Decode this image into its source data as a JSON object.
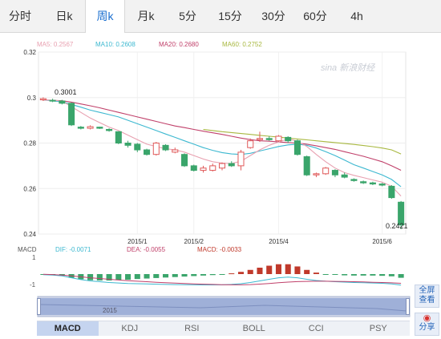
{
  "tabs": [
    {
      "label": "分时"
    },
    {
      "label": "日k"
    },
    {
      "label": "周k",
      "active": true
    },
    {
      "label": "月k"
    },
    {
      "label": "5分"
    },
    {
      "label": "15分"
    },
    {
      "label": "30分"
    },
    {
      "label": "60分"
    },
    {
      "label": "4h"
    }
  ],
  "legend": {
    "ma5": "MA5: 0.2567",
    "ma10": "MA10: 0.2608",
    "ma20": "MA20: 0.2680",
    "ma60": "MA60: 0.2752"
  },
  "watermark": "sina 新浪财经",
  "macd_legend": {
    "name": "MACD",
    "dif": "DIF: -0.0071",
    "dea": "DEA: -0.0055",
    "macd": "MACD: -0.0033"
  },
  "macd_axis": {
    "top": "1",
    "bottom": "-1"
  },
  "navigator_label": "2015",
  "side_buttons": {
    "fullscreen": "全屏\n查看",
    "share": "分享"
  },
  "indicators": [
    "MACD",
    "KDJ",
    "RSI",
    "BOLL",
    "CCI",
    "PSY"
  ],
  "active_indicator": "MACD",
  "colors": {
    "up": "#e05a5a",
    "down": "#3aa56b",
    "ma5": "#e8a0b0",
    "ma10": "#3cb8d0",
    "ma20": "#c0406a",
    "ma60": "#a8b840"
  },
  "chart_data": {
    "type": "candlestick",
    "ylim": [
      0.24,
      0.32
    ],
    "yticks": [
      "0.32",
      "0.3",
      "0.28",
      "0.26",
      "0.24"
    ],
    "x_tick_labels": [
      "2015/1",
      "2015/2",
      "2015/4",
      "2015/6"
    ],
    "annotations": {
      "high": "0.3001",
      "low": "0.2421"
    },
    "candles": [
      {
        "o": 0.299,
        "c": 0.2995,
        "h": 0.3001,
        "l": 0.2985
      },
      {
        "o": 0.2988,
        "c": 0.2985,
        "h": 0.2995,
        "l": 0.298
      },
      {
        "o": 0.2985,
        "c": 0.2975,
        "h": 0.299,
        "l": 0.297
      },
      {
        "o": 0.2975,
        "c": 0.288,
        "h": 0.2978,
        "l": 0.2875
      },
      {
        "o": 0.287,
        "c": 0.2865,
        "h": 0.2875,
        "l": 0.286
      },
      {
        "o": 0.2865,
        "c": 0.2872,
        "h": 0.2878,
        "l": 0.286
      },
      {
        "o": 0.287,
        "c": 0.2865,
        "h": 0.2872,
        "l": 0.2862
      },
      {
        "o": 0.286,
        "c": 0.2855,
        "h": 0.2865,
        "l": 0.285
      },
      {
        "o": 0.285,
        "c": 0.28,
        "h": 0.2852,
        "l": 0.2795
      },
      {
        "o": 0.28,
        "c": 0.279,
        "h": 0.281,
        "l": 0.278
      },
      {
        "o": 0.2795,
        "c": 0.277,
        "h": 0.28,
        "l": 0.276
      },
      {
        "o": 0.277,
        "c": 0.275,
        "h": 0.2775,
        "l": 0.2745
      },
      {
        "o": 0.275,
        "c": 0.28,
        "h": 0.2805,
        "l": 0.2745
      },
      {
        "o": 0.279,
        "c": 0.277,
        "h": 0.2795,
        "l": 0.2765
      },
      {
        "o": 0.276,
        "c": 0.277,
        "h": 0.278,
        "l": 0.2755
      },
      {
        "o": 0.275,
        "c": 0.27,
        "h": 0.2755,
        "l": 0.2695
      },
      {
        "o": 0.27,
        "c": 0.268,
        "h": 0.2705,
        "l": 0.2675
      },
      {
        "o": 0.268,
        "c": 0.269,
        "h": 0.27,
        "l": 0.267
      },
      {
        "o": 0.268,
        "c": 0.27,
        "h": 0.271,
        "l": 0.2675
      },
      {
        "o": 0.269,
        "c": 0.271,
        "h": 0.2715,
        "l": 0.268
      },
      {
        "o": 0.271,
        "c": 0.27,
        "h": 0.272,
        "l": 0.2695
      },
      {
        "o": 0.27,
        "c": 0.276,
        "h": 0.277,
        "l": 0.268
      },
      {
        "o": 0.278,
        "c": 0.281,
        "h": 0.282,
        "l": 0.2775
      },
      {
        "o": 0.2815,
        "c": 0.282,
        "h": 0.285,
        "l": 0.2805
      },
      {
        "o": 0.282,
        "c": 0.2815,
        "h": 0.283,
        "l": 0.281
      },
      {
        "o": 0.281,
        "c": 0.283,
        "h": 0.2835,
        "l": 0.2805
      },
      {
        "o": 0.2825,
        "c": 0.281,
        "h": 0.283,
        "l": 0.28
      },
      {
        "o": 0.281,
        "c": 0.275,
        "h": 0.2815,
        "l": 0.2745
      },
      {
        "o": 0.274,
        "c": 0.266,
        "h": 0.2745,
        "l": 0.2655
      },
      {
        "o": 0.266,
        "c": 0.2665,
        "h": 0.267,
        "l": 0.265
      },
      {
        "o": 0.2665,
        "c": 0.269,
        "h": 0.2695,
        "l": 0.266
      },
      {
        "o": 0.268,
        "c": 0.266,
        "h": 0.2685,
        "l": 0.265
      },
      {
        "o": 0.266,
        "c": 0.265,
        "h": 0.267,
        "l": 0.2645
      },
      {
        "o": 0.264,
        "c": 0.2635,
        "h": 0.2645,
        "l": 0.263
      },
      {
        "o": 0.263,
        "c": 0.2625,
        "h": 0.2635,
        "l": 0.262
      },
      {
        "o": 0.2625,
        "c": 0.262,
        "h": 0.263,
        "l": 0.2615
      },
      {
        "o": 0.262,
        "c": 0.2615,
        "h": 0.2625,
        "l": 0.261
      },
      {
        "o": 0.261,
        "c": 0.256,
        "h": 0.2615,
        "l": 0.2555
      },
      {
        "o": 0.254,
        "c": 0.244,
        "h": 0.2545,
        "l": 0.2421
      }
    ],
    "ma5": [
      0.299,
      0.2988,
      0.2985,
      0.296,
      0.2935,
      0.291,
      0.289,
      0.287,
      0.2855,
      0.2835,
      0.2815,
      0.2795,
      0.2785,
      0.2775,
      0.277,
      0.276,
      0.2745,
      0.273,
      0.2718,
      0.2712,
      0.271,
      0.272,
      0.2745,
      0.277,
      0.279,
      0.2805,
      0.2818,
      0.2808,
      0.2785,
      0.275,
      0.2718,
      0.269,
      0.267,
      0.2658,
      0.2648,
      0.2638,
      0.2628,
      0.261,
      0.2567
    ],
    "ma10": [
      0.299,
      0.2985,
      0.2982,
      0.297,
      0.2958,
      0.2945,
      0.2935,
      0.2925,
      0.2915,
      0.29,
      0.2885,
      0.287,
      0.2855,
      0.284,
      0.2825,
      0.281,
      0.2795,
      0.278,
      0.2768,
      0.2758,
      0.2752,
      0.275,
      0.2755,
      0.2765,
      0.2775,
      0.2785,
      0.2792,
      0.2795,
      0.279,
      0.2778,
      0.2762,
      0.2745,
      0.2725,
      0.2705,
      0.269,
      0.2675,
      0.266,
      0.264,
      0.2608
    ],
    "ma20": [
      0.299,
      0.2988,
      0.2986,
      0.298,
      0.2972,
      0.2964,
      0.2955,
      0.2945,
      0.2935,
      0.2925,
      0.2915,
      0.2905,
      0.2895,
      0.2885,
      0.2875,
      0.2868,
      0.286,
      0.2852,
      0.2845,
      0.2838,
      0.283,
      0.2822,
      0.2815,
      0.281,
      0.2808,
      0.2805,
      0.2802,
      0.28,
      0.2795,
      0.2788,
      0.278,
      0.2772,
      0.2762,
      0.2752,
      0.2742,
      0.273,
      0.2718,
      0.27,
      0.268
    ],
    "ma60": [
      null,
      null,
      null,
      null,
      null,
      null,
      null,
      null,
      null,
      null,
      null,
      null,
      null,
      null,
      null,
      null,
      null,
      0.286,
      0.2855,
      0.285,
      0.2846,
      0.2842,
      0.2838,
      0.2834,
      0.283,
      0.2826,
      0.2822,
      0.2818,
      0.2814,
      0.281,
      0.2806,
      0.2802,
      0.2798,
      0.2794,
      0.2789,
      0.2784,
      0.2778,
      0.277,
      0.2752
    ],
    "macd": {
      "ylim": [
        -1.3,
        1.3
      ],
      "dif": [
        -0.05,
        -0.08,
        -0.15,
        -0.3,
        -0.45,
        -0.55,
        -0.62,
        -0.68,
        -0.72,
        -0.76,
        -0.78,
        -0.8,
        -0.82,
        -0.84,
        -0.85,
        -0.86,
        -0.87,
        -0.88,
        -0.88,
        -0.87,
        -0.84,
        -0.78,
        -0.68,
        -0.55,
        -0.42,
        -0.3,
        -0.25,
        -0.3,
        -0.42,
        -0.52,
        -0.58,
        -0.62,
        -0.65,
        -0.68,
        -0.7,
        -0.72,
        -0.75,
        -0.8,
        -0.9
      ],
      "dea": [
        -0.02,
        -0.04,
        -0.08,
        -0.15,
        -0.22,
        -0.3,
        -0.36,
        -0.42,
        -0.48,
        -0.53,
        -0.58,
        -0.62,
        -0.66,
        -0.7,
        -0.73,
        -0.76,
        -0.79,
        -0.82,
        -0.84,
        -0.86,
        -0.87,
        -0.87,
        -0.85,
        -0.81,
        -0.76,
        -0.7,
        -0.65,
        -0.61,
        -0.59,
        -0.58,
        -0.58,
        -0.59,
        -0.6,
        -0.62,
        -0.64,
        -0.66,
        -0.68,
        -0.71,
        -0.75
      ],
      "hist": [
        -0.05,
        -0.08,
        -0.14,
        -0.3,
        -0.42,
        -0.5,
        -0.52,
        -0.52,
        -0.48,
        -0.46,
        -0.4,
        -0.36,
        -0.32,
        -0.28,
        -0.24,
        -0.2,
        -0.16,
        -0.12,
        -0.08,
        -0.04,
        0.06,
        0.18,
        0.34,
        0.52,
        0.68,
        0.8,
        0.8,
        0.62,
        0.34,
        0.12,
        -0.02,
        -0.06,
        -0.1,
        -0.12,
        -0.12,
        -0.12,
        -0.14,
        -0.18,
        -0.3
      ]
    }
  }
}
